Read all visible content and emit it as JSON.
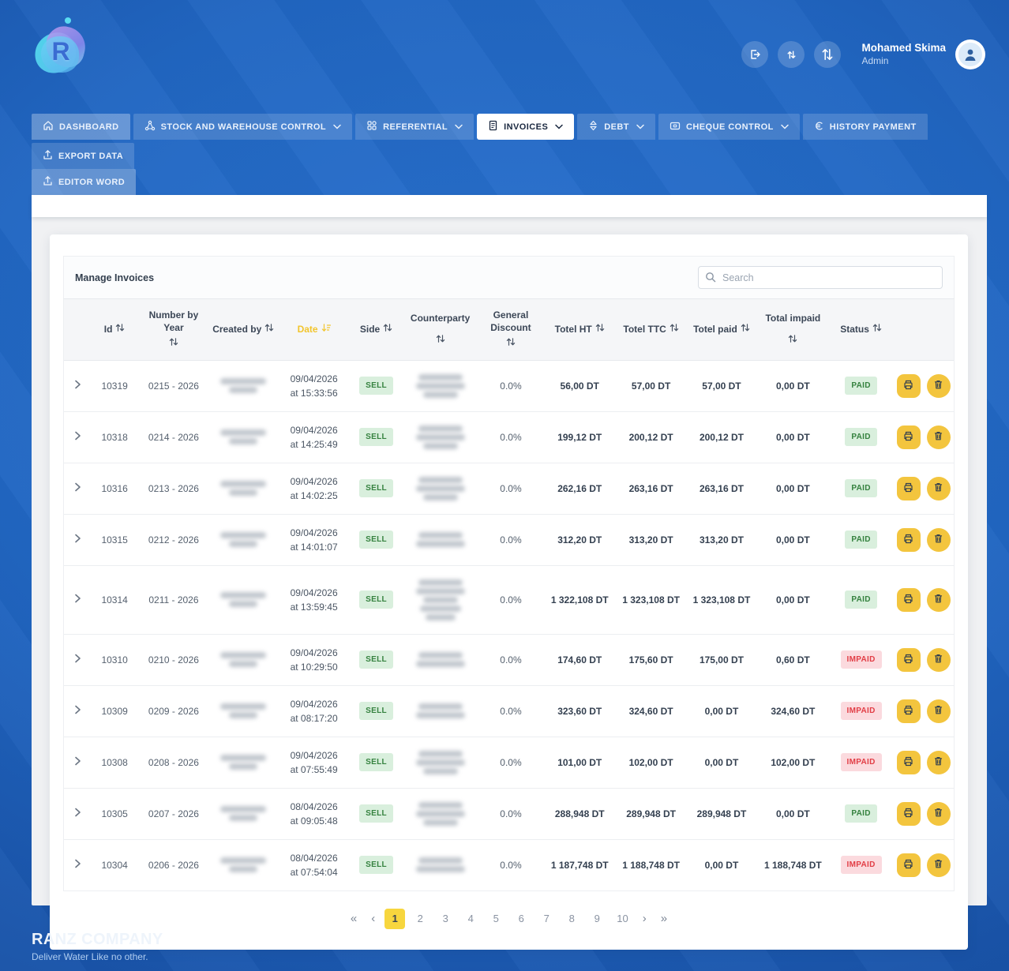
{
  "header": {
    "logo_letter": "R",
    "user_name": "Mohamed Skima",
    "user_role": "Admin",
    "buttons": [
      {
        "icon": "logout-icon"
      },
      {
        "icon": "swap-vertical-small-icon"
      },
      {
        "icon": "swap-vertical-large-icon"
      }
    ]
  },
  "nav": {
    "items": [
      {
        "label": "DASHBOARD",
        "icon": "home-icon",
        "chevron": false
      },
      {
        "label": "STOCK AND WAREHOUSE CONTROL",
        "icon": "network-icon",
        "chevron": true
      },
      {
        "label": "REFERENTIAL",
        "icon": "grid-icon",
        "chevron": true
      },
      {
        "label": "INVOICES",
        "icon": "invoice-icon",
        "chevron": true,
        "active": true
      },
      {
        "label": "DEBT",
        "icon": "gem-icon",
        "chevron": true
      },
      {
        "label": "CHEQUE CONTROL",
        "icon": "cheque-icon",
        "chevron": true
      },
      {
        "label": "HISTORY PAYMENT",
        "icon": "euro-history-icon",
        "chevron": false
      },
      {
        "label": "EXPORT DATA",
        "icon": "export-icon",
        "chevron": false
      },
      {
        "label": "EDITOR WORD",
        "icon": "export-icon",
        "chevron": false
      }
    ]
  },
  "table": {
    "title": "Manage Invoices",
    "search_placeholder": "Search",
    "sorted_column": "Date",
    "columns": [
      {
        "label": "Id"
      },
      {
        "label": "Number by Year"
      },
      {
        "label": "Created by"
      },
      {
        "label": "Date",
        "highlight": true
      },
      {
        "label": "Side"
      },
      {
        "label": "Counterparty"
      },
      {
        "label": "General Discount"
      },
      {
        "label": "Totel HT"
      },
      {
        "label": "Totel TTC"
      },
      {
        "label": "Totel paid"
      },
      {
        "label": "Total impaid"
      },
      {
        "label": "Status"
      }
    ],
    "rows": [
      {
        "id": "10319",
        "number": "0215 - 2026",
        "created_lines": 2,
        "date_line1": "09/04/2026",
        "date_line2": "at 15:33:56",
        "side": "SELL",
        "counterparty_lines": 3,
        "discount": "0.0%",
        "total_ht": "56,00 DT",
        "total_ttc": "57,00 DT",
        "total_paid": "57,00 DT",
        "total_impaid": "0,00 DT",
        "status": "PAID"
      },
      {
        "id": "10318",
        "number": "0214 - 2026",
        "created_lines": 2,
        "date_line1": "09/04/2026",
        "date_line2": "at 14:25:49",
        "side": "SELL",
        "counterparty_lines": 3,
        "discount": "0.0%",
        "total_ht": "199,12 DT",
        "total_ttc": "200,12 DT",
        "total_paid": "200,12 DT",
        "total_impaid": "0,00 DT",
        "status": "PAID"
      },
      {
        "id": "10316",
        "number": "0213 - 2026",
        "created_lines": 2,
        "date_line1": "09/04/2026",
        "date_line2": "at 14:02:25",
        "side": "SELL",
        "counterparty_lines": 3,
        "discount": "0.0%",
        "total_ht": "262,16 DT",
        "total_ttc": "263,16 DT",
        "total_paid": "263,16 DT",
        "total_impaid": "0,00 DT",
        "status": "PAID"
      },
      {
        "id": "10315",
        "number": "0212 - 2026",
        "created_lines": 2,
        "date_line1": "09/04/2026",
        "date_line2": "at 14:01:07",
        "side": "SELL",
        "counterparty_lines": 2,
        "discount": "0.0%",
        "total_ht": "312,20 DT",
        "total_ttc": "313,20 DT",
        "total_paid": "313,20 DT",
        "total_impaid": "0,00 DT",
        "status": "PAID"
      },
      {
        "id": "10314",
        "number": "0211 - 2026",
        "created_lines": 2,
        "date_line1": "09/04/2026",
        "date_line2": "at 13:59:45",
        "side": "SELL",
        "counterparty_lines": 5,
        "discount": "0.0%",
        "total_ht": "1 322,108 DT",
        "total_ttc": "1 323,108 DT",
        "total_paid": "1 323,108 DT",
        "total_impaid": "0,00 DT",
        "status": "PAID"
      },
      {
        "id": "10310",
        "number": "0210 - 2026",
        "created_lines": 2,
        "date_line1": "09/04/2026",
        "date_line2": "at 10:29:50",
        "side": "SELL",
        "counterparty_lines": 2,
        "discount": "0.0%",
        "total_ht": "174,60 DT",
        "total_ttc": "175,60 DT",
        "total_paid": "175,00 DT",
        "total_impaid": "0,60 DT",
        "status": "IMPAID"
      },
      {
        "id": "10309",
        "number": "0209 - 2026",
        "created_lines": 2,
        "date_line1": "09/04/2026",
        "date_line2": "at 08:17:20",
        "side": "SELL",
        "counterparty_lines": 2,
        "discount": "0.0%",
        "total_ht": "323,60 DT",
        "total_ttc": "324,60 DT",
        "total_paid": "0,00 DT",
        "total_impaid": "324,60 DT",
        "status": "IMPAID"
      },
      {
        "id": "10308",
        "number": "0208 - 2026",
        "created_lines": 2,
        "date_line1": "09/04/2026",
        "date_line2": "at 07:55:49",
        "side": "SELL",
        "counterparty_lines": 3,
        "discount": "0.0%",
        "total_ht": "101,00 DT",
        "total_ttc": "102,00 DT",
        "total_paid": "0,00 DT",
        "total_impaid": "102,00 DT",
        "status": "IMPAID"
      },
      {
        "id": "10305",
        "number": "0207 - 2026",
        "created_lines": 2,
        "date_line1": "08/04/2026",
        "date_line2": "at 09:05:48",
        "side": "SELL",
        "counterparty_lines": 3,
        "discount": "0.0%",
        "total_ht": "288,948 DT",
        "total_ttc": "289,948 DT",
        "total_paid": "289,948 DT",
        "total_impaid": "0,00 DT",
        "status": "PAID"
      },
      {
        "id": "10304",
        "number": "0206 - 2026",
        "created_lines": 2,
        "date_line1": "08/04/2026",
        "date_line2": "at 07:54:04",
        "side": "SELL",
        "counterparty_lines": 2,
        "discount": "0.0%",
        "total_ht": "1 187,748 DT",
        "total_ttc": "1 188,748 DT",
        "total_paid": "0,00 DT",
        "total_impaid": "1 188,748 DT",
        "status": "IMPAID"
      }
    ]
  },
  "pagination": {
    "first": "«",
    "prev": "‹",
    "next": "›",
    "last": "»",
    "pages": [
      "1",
      "2",
      "3",
      "4",
      "5",
      "6",
      "7",
      "8",
      "9",
      "10"
    ],
    "active": "1"
  },
  "footer": {
    "company": "RANZ COMPANY",
    "tagline": "Deliver Water Like no other."
  },
  "colors": {
    "background_blue": "#2166c2",
    "accent_yellow": "#f3c53e",
    "active_page_yellow": "#f7d63e",
    "paid_badge_bg": "#d9efdd",
    "paid_badge_text": "#35823f",
    "impaid_badge_bg": "#fbdade",
    "impaid_badge_text": "#e23e46",
    "sell_badge_bg": "#d9efdd",
    "sell_badge_text": "#35823f",
    "date_header_yellow": "#f2c52d"
  }
}
